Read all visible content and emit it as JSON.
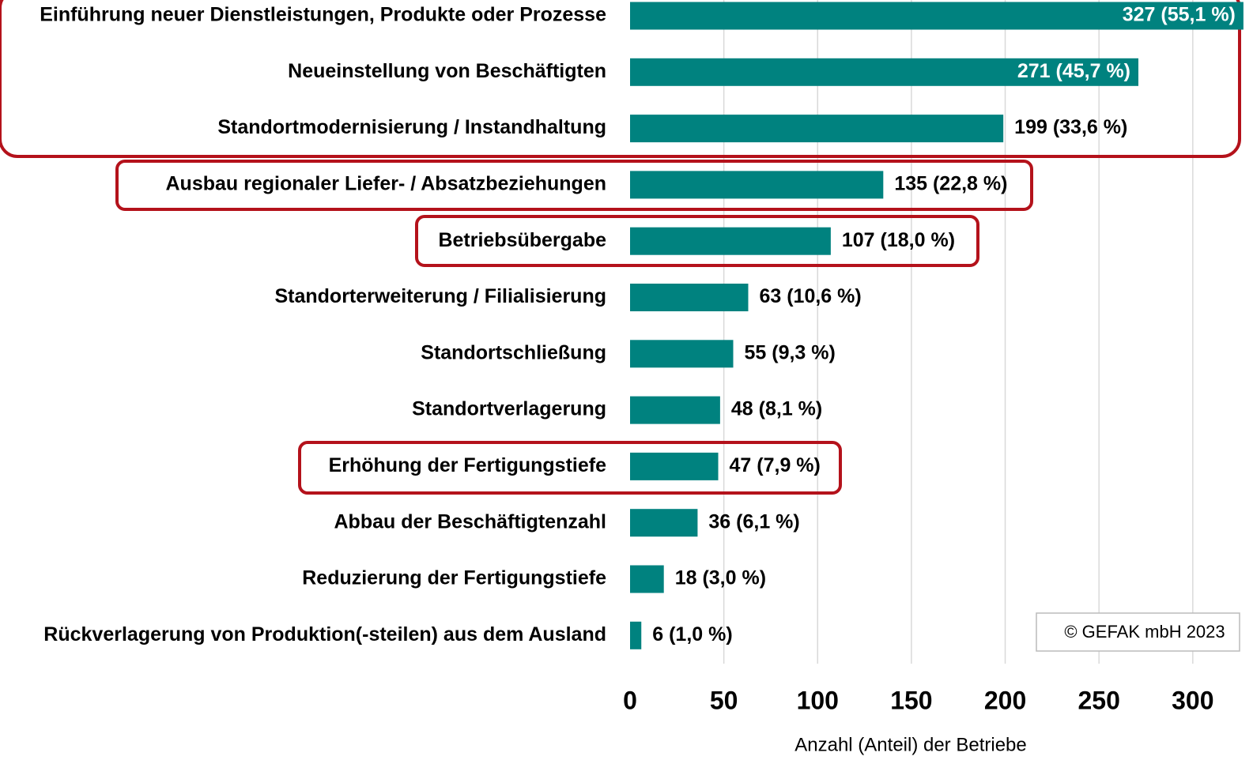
{
  "chart_data": {
    "type": "barh",
    "categories": [
      "Einführung neuer Dienstleistungen, Produkte oder Prozesse",
      "Neueinstellung von Beschäftigten",
      "Standortmodernisierung / Instandhaltung",
      "Ausbau regionaler Liefer- / Absatzbeziehungen",
      "Betriebsübergabe",
      "Standorterweiterung / Filialisierung",
      "Standortschließung",
      "Standortverlagerung",
      "Erhöhung der Fertigungstiefe",
      "Abbau der Beschäftigtenzahl",
      "Reduzierung der Fertigungstiefe",
      "Rückverlagerung von Produktion(-steilen) aus dem Ausland"
    ],
    "values": [
      327,
      271,
      199,
      135,
      107,
      63,
      55,
      48,
      47,
      36,
      18,
      6
    ],
    "value_labels": [
      "327 (55,1 %)",
      "271 (45,7 %)",
      "199 (33,6 %)",
      "135 (22,8 %)",
      "107 (18,0 %)",
      "63 (10,6 %)",
      "55 (9,3 %)",
      "48 (8,1 %)",
      "47 (7,9 %)",
      "36 (6,1 %)",
      "18 (3,0 %)",
      "6 (1,0 %)"
    ],
    "color": "#00827f",
    "xlim": [
      0,
      330
    ],
    "xticks": [
      0,
      50,
      100,
      150,
      200,
      250,
      300
    ],
    "grid": true,
    "xlabel": "Anzahl (Anteil) der Betriebe",
    "annotation": "© GEFAK mbH 2023"
  }
}
